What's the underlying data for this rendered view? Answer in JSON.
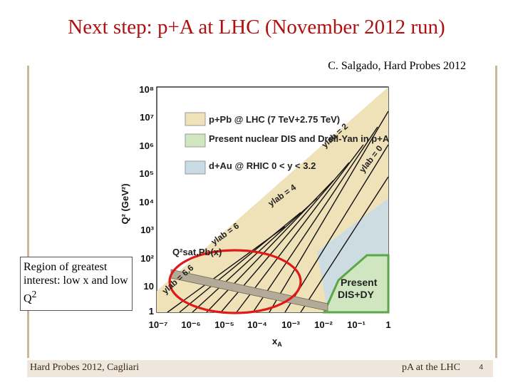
{
  "slide": {
    "title": "Next step: p+A at LHC (November 2012 run)",
    "credit": "C. Salgado, Hard Probes 2012",
    "callout": "Region of greatest interest: low x and low Q",
    "callout_sup": "2",
    "footer_left": "Hard Probes 2012, Cagliari",
    "footer_right": "pA at the LHC",
    "page_number": "4"
  },
  "figure": {
    "y_axis_label": "Q² (GeV²)",
    "x_axis_label": "x",
    "x_axis_label_sub": "A",
    "y_ticks": [
      "1",
      "10",
      "10²",
      "10³",
      "10⁴",
      "10⁵",
      "10⁶",
      "10⁷",
      "10⁸"
    ],
    "x_ticks": [
      "10⁻⁷",
      "10⁻⁶",
      "10⁻⁵",
      "10⁻⁴",
      "10⁻³",
      "10⁻²",
      "10⁻¹",
      "1"
    ],
    "legend": [
      {
        "label": "p+Pb @ LHC (7 TeV+2.75 TeV)",
        "color": "#efe1b8"
      },
      {
        "label": "Present nuclear DIS and Drell-Yan in p+A",
        "color": "#cfe6c0"
      },
      {
        "label": "d+Au @ RHIC 0 < y < 3.2",
        "color": "#c9dce6"
      }
    ],
    "annotations": {
      "present": "Present",
      "dis_dy": "DIS+DY",
      "qsat": "Q²sat,Pb(x)",
      "y_lab_values": [
        "ylab = 2",
        "ylab = 0",
        "ylab = 4",
        "ylab = 6",
        "ylab = 6.6"
      ]
    },
    "colors": {
      "lhc_region": "#efe1b8",
      "dis_region": "#cfe6c0",
      "dis_outline": "#5aa648",
      "rhic_region": "#c9dce6",
      "saturation_band": "#b3ab98",
      "highlight_ellipse": "#e01818"
    }
  }
}
